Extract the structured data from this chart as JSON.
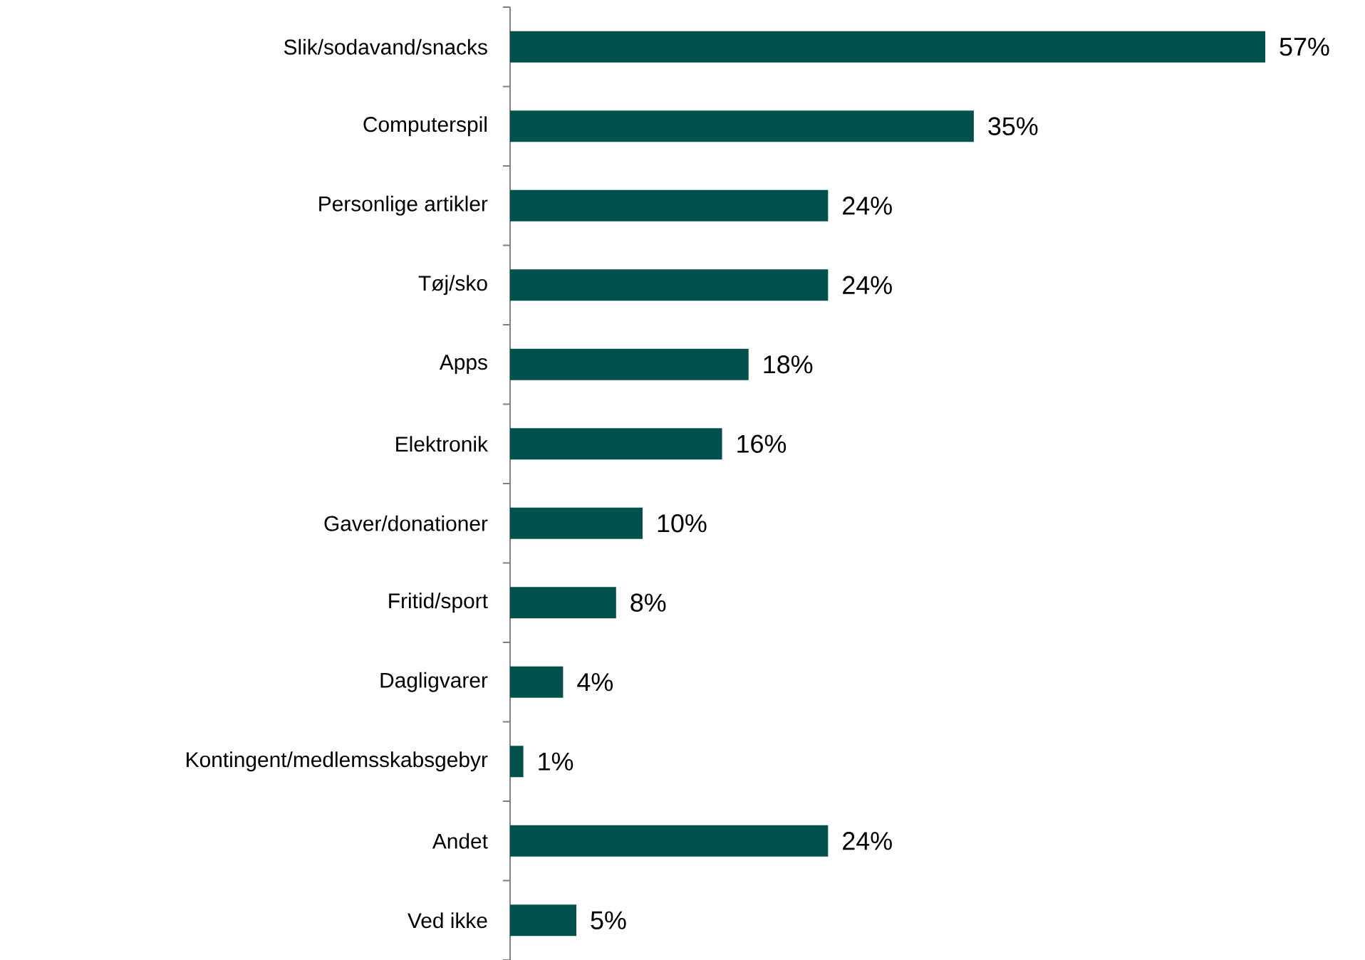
{
  "chart_data": {
    "type": "bar",
    "orientation": "horizontal",
    "categories": [
      "Slik/sodavand/snacks",
      "Computerspil",
      "Personlige artikler",
      "Tøj/sko",
      "Apps",
      "Elektronik",
      "Gaver/donationer",
      "Fritid/sport",
      "Dagligvarer",
      "Kontingent/medlemsskabsgebyr",
      "Andet",
      "Ved ikke"
    ],
    "values": [
      57,
      35,
      24,
      24,
      18,
      16,
      10,
      8,
      4,
      1,
      24,
      5
    ],
    "value_labels": [
      "57%",
      "35%",
      "24%",
      "24%",
      "18%",
      "16%",
      "10%",
      "8%",
      "4%",
      "1%",
      "24%",
      "5%"
    ],
    "color": "#00504c"
  }
}
